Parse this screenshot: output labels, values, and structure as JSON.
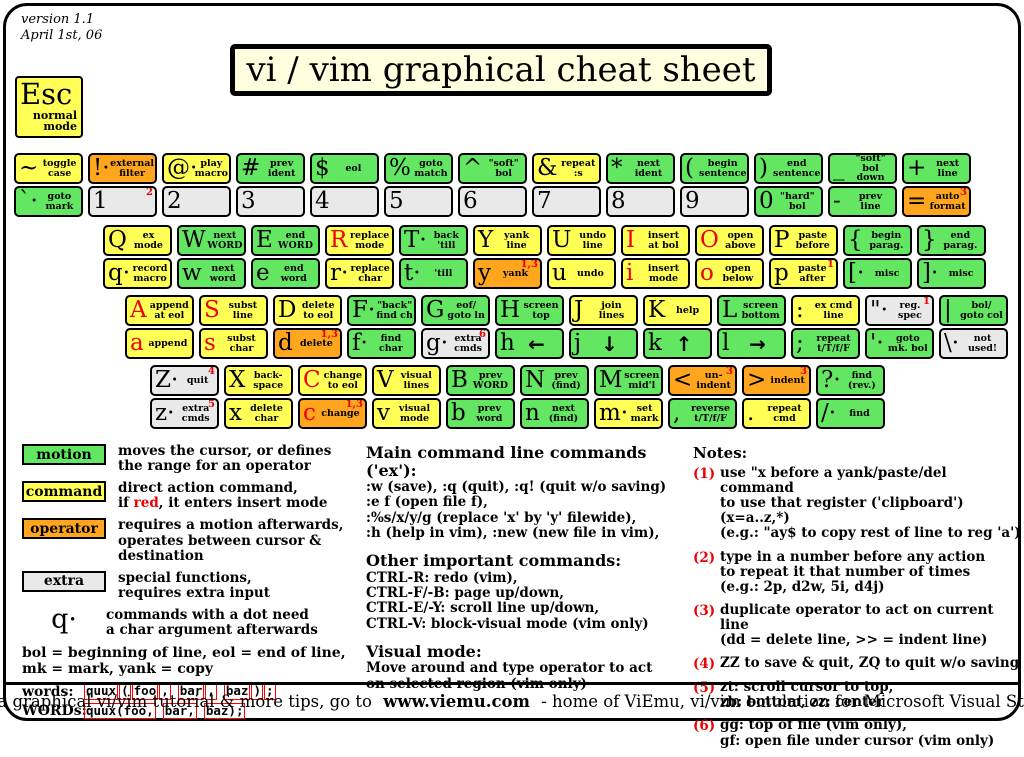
{
  "meta": {
    "version": "version 1.1\nApril 1st, 06"
  },
  "title": "vi / vim graphical cheat sheet",
  "esc": {
    "label": "Esc",
    "sublabel": "normal\nmode"
  },
  "colors": {
    "motion": "#63e763",
    "command": "#ffff55",
    "operator": "#ffa51e",
    "extra": "#e9e9e9",
    "red": "#ee0000",
    "cream": "#ffffdf"
  },
  "keyboard": {
    "rows": [
      [
        {
          "name": "key-tilde",
          "top": {
            "sym": "~",
            "label": "toggle\ncase",
            "color": "command"
          },
          "bottom": {
            "sym": "`·",
            "label": "goto\nmark",
            "color": "motion"
          }
        },
        {
          "name": "key-1",
          "top": {
            "sym": "!·",
            "label": "external\nfilter",
            "color": "operator"
          },
          "bottom": {
            "sym": "1",
            "label": "",
            "color": "extra",
            "sup": "2"
          }
        },
        {
          "name": "key-2",
          "top": {
            "sym": "@·",
            "label": "play\nmacro",
            "color": "command"
          },
          "bottom": {
            "sym": "2",
            "label": "",
            "color": "extra"
          }
        },
        {
          "name": "key-3",
          "top": {
            "sym": "#",
            "label": "prev\nident",
            "color": "motion"
          },
          "bottom": {
            "sym": "3",
            "label": "",
            "color": "extra"
          }
        },
        {
          "name": "key-4",
          "top": {
            "sym": "$",
            "label": "eol",
            "color": "motion"
          },
          "bottom": {
            "sym": "4",
            "label": "",
            "color": "extra"
          }
        },
        {
          "name": "key-5",
          "top": {
            "sym": "%",
            "label": "goto\nmatch",
            "color": "motion"
          },
          "bottom": {
            "sym": "5",
            "label": "",
            "color": "extra"
          }
        },
        {
          "name": "key-6",
          "top": {
            "sym": "^",
            "label": "\"soft\"\nbol",
            "color": "motion"
          },
          "bottom": {
            "sym": "6",
            "label": "",
            "color": "extra"
          }
        },
        {
          "name": "key-7",
          "top": {
            "sym": "&",
            "label": "repeat\n:s",
            "color": "command"
          },
          "bottom": {
            "sym": "7",
            "label": "",
            "color": "extra"
          }
        },
        {
          "name": "key-8",
          "top": {
            "sym": "*",
            "label": "next\nident",
            "color": "motion"
          },
          "bottom": {
            "sym": "8",
            "label": "",
            "color": "extra"
          }
        },
        {
          "name": "key-9",
          "top": {
            "sym": "(",
            "label": "begin\nsentence",
            "color": "motion"
          },
          "bottom": {
            "sym": "9",
            "label": "",
            "color": "extra"
          }
        },
        {
          "name": "key-0",
          "top": {
            "sym": ")",
            "label": "end\nsentence",
            "color": "motion"
          },
          "bottom": {
            "sym": "0",
            "label": "\"hard\"\nbol",
            "color": "motion"
          }
        },
        {
          "name": "key-minus",
          "top": {
            "sym": "_",
            "label": "\"soft\" bol\ndown",
            "color": "motion"
          },
          "bottom": {
            "sym": "-",
            "label": "prev\nline",
            "color": "motion"
          }
        },
        {
          "name": "key-equals",
          "top": {
            "sym": "+",
            "label": "next\nline",
            "color": "motion"
          },
          "bottom": {
            "sym": "=",
            "label": "auto\nformat",
            "color": "operator",
            "sup": "3"
          }
        }
      ],
      [
        {
          "name": "key-q",
          "top": {
            "sym": "Q",
            "label": "ex\nmode",
            "color": "command"
          },
          "bottom": {
            "sym": "q·",
            "label": "record\nmacro",
            "color": "command"
          }
        },
        {
          "name": "key-w",
          "top": {
            "sym": "W",
            "label": "next\nWORD",
            "color": "motion"
          },
          "bottom": {
            "sym": "w",
            "label": "next\nword",
            "color": "motion"
          }
        },
        {
          "name": "key-e",
          "top": {
            "sym": "E",
            "label": "end\nWORD",
            "color": "motion"
          },
          "bottom": {
            "sym": "e",
            "label": "end\nword",
            "color": "motion"
          }
        },
        {
          "name": "key-r",
          "top": {
            "sym": "R",
            "red": true,
            "label": "replace\nmode",
            "color": "command"
          },
          "bottom": {
            "sym": "r·",
            "label": "replace\nchar",
            "color": "command"
          }
        },
        {
          "name": "key-t",
          "top": {
            "sym": "T·",
            "label": "back\n'till",
            "color": "motion"
          },
          "bottom": {
            "sym": "t·",
            "label": "'till",
            "color": "motion"
          }
        },
        {
          "name": "key-y",
          "top": {
            "sym": "Y",
            "label": "yank\nline",
            "color": "command"
          },
          "bottom": {
            "sym": "y",
            "label": "yank",
            "color": "operator",
            "sup": "1,3"
          }
        },
        {
          "name": "key-u",
          "top": {
            "sym": "U",
            "label": "undo\nline",
            "color": "command"
          },
          "bottom": {
            "sym": "u",
            "label": "undo",
            "color": "command"
          }
        },
        {
          "name": "key-i",
          "top": {
            "sym": "I",
            "red": true,
            "label": "insert\nat bol",
            "color": "command"
          },
          "bottom": {
            "sym": "i",
            "red": true,
            "label": "insert\nmode",
            "color": "command"
          }
        },
        {
          "name": "key-o",
          "top": {
            "sym": "O",
            "red": true,
            "label": "open\nabove",
            "color": "command"
          },
          "bottom": {
            "sym": "o",
            "red": true,
            "label": "open\nbelow",
            "color": "command"
          }
        },
        {
          "name": "key-p",
          "top": {
            "sym": "P",
            "label": "paste\nbefore",
            "color": "command"
          },
          "bottom": {
            "sym": "p",
            "label": "paste\nafter",
            "color": "command",
            "sup": "1"
          }
        },
        {
          "name": "key-bracket-open",
          "top": {
            "sym": "{",
            "label": "begin\nparag.",
            "color": "motion"
          },
          "bottom": {
            "sym": "[·",
            "label": "misc",
            "color": "motion"
          }
        },
        {
          "name": "key-bracket-close",
          "top": {
            "sym": "}",
            "label": "end\nparag.",
            "color": "motion"
          },
          "bottom": {
            "sym": "]·",
            "label": "misc",
            "color": "motion"
          }
        }
      ],
      [
        {
          "name": "key-a",
          "top": {
            "sym": "A",
            "red": true,
            "label": "append\nat eol",
            "color": "command"
          },
          "bottom": {
            "sym": "a",
            "red": true,
            "label": "append",
            "color": "command"
          }
        },
        {
          "name": "key-s",
          "top": {
            "sym": "S",
            "red": true,
            "label": "subst\nline",
            "color": "command"
          },
          "bottom": {
            "sym": "s",
            "red": true,
            "label": "subst\nchar",
            "color": "command"
          }
        },
        {
          "name": "key-d",
          "top": {
            "sym": "D",
            "label": "delete\nto eol",
            "color": "command"
          },
          "bottom": {
            "sym": "d",
            "label": "delete",
            "color": "operator",
            "sup": "1,3"
          }
        },
        {
          "name": "key-f",
          "top": {
            "sym": "F·",
            "label": "\"back\"\nfind ch",
            "color": "motion"
          },
          "bottom": {
            "sym": "f·",
            "label": "find\nchar",
            "color": "motion"
          }
        },
        {
          "name": "key-g",
          "top": {
            "sym": "G",
            "label": "eof/\ngoto ln",
            "color": "motion"
          },
          "bottom": {
            "sym": "g·",
            "label": "extra\ncmds",
            "color": "extra",
            "sup": "6"
          }
        },
        {
          "name": "key-h",
          "top": {
            "sym": "H",
            "label": "screen\ntop",
            "color": "motion"
          },
          "bottom": {
            "sym": "h",
            "arrow": "←",
            "color": "motion"
          }
        },
        {
          "name": "key-j",
          "top": {
            "sym": "J",
            "label": "join\nlines",
            "color": "command"
          },
          "bottom": {
            "sym": "j",
            "arrow": "↓",
            "color": "motion"
          }
        },
        {
          "name": "key-k",
          "top": {
            "sym": "K",
            "label": "help",
            "color": "command"
          },
          "bottom": {
            "sym": "k",
            "arrow": "↑",
            "color": "motion"
          }
        },
        {
          "name": "key-l",
          "top": {
            "sym": "L",
            "label": "screen\nbottom",
            "color": "motion"
          },
          "bottom": {
            "sym": "l",
            "arrow": "→",
            "color": "motion"
          }
        },
        {
          "name": "key-colon",
          "top": {
            "sym": ":",
            "label": "ex cmd\nline",
            "color": "command"
          },
          "bottom": {
            "sym": ";",
            "label": "repeat\nt/T/f/F",
            "color": "motion"
          }
        },
        {
          "name": "key-quote",
          "top": {
            "sym": "\"·",
            "label": "reg.\nspec",
            "color": "extra",
            "sup": "1"
          },
          "bottom": {
            "sym": "'·",
            "label": "goto\nmk. bol",
            "color": "motion"
          }
        },
        {
          "name": "key-pipe",
          "top": {
            "sym": "|",
            "label": "bol/\ngoto col",
            "color": "motion"
          },
          "bottom": {
            "sym": "\\·",
            "label": "not\nused!",
            "color": "extra"
          }
        }
      ],
      [
        {
          "name": "key-z",
          "top": {
            "sym": "Z·",
            "label": "quit",
            "color": "extra",
            "sup": "4"
          },
          "bottom": {
            "sym": "z·",
            "label": "extra\ncmds",
            "color": "extra",
            "sup": "5"
          }
        },
        {
          "name": "key-x",
          "top": {
            "sym": "X",
            "label": "back-\nspace",
            "color": "command"
          },
          "bottom": {
            "sym": "x",
            "label": "delete\nchar",
            "color": "command"
          }
        },
        {
          "name": "key-c",
          "top": {
            "sym": "C",
            "red": true,
            "label": "change\nto eol",
            "color": "command"
          },
          "bottom": {
            "sym": "c",
            "red": true,
            "label": "change",
            "color": "operator",
            "sup": "1,3"
          }
        },
        {
          "name": "key-v",
          "top": {
            "sym": "V",
            "label": "visual\nlines",
            "color": "command"
          },
          "bottom": {
            "sym": "v",
            "label": "visual\nmode",
            "color": "command"
          }
        },
        {
          "name": "key-b",
          "top": {
            "sym": "B",
            "label": "prev\nWORD",
            "color": "motion"
          },
          "bottom": {
            "sym": "b",
            "label": "prev\nword",
            "color": "motion"
          }
        },
        {
          "name": "key-n",
          "top": {
            "sym": "N",
            "label": "prev\n(find)",
            "color": "motion"
          },
          "bottom": {
            "sym": "n",
            "label": "next\n(find)",
            "color": "motion"
          }
        },
        {
          "name": "key-m",
          "top": {
            "sym": "M",
            "label": "screen\nmid'l",
            "color": "motion"
          },
          "bottom": {
            "sym": "m·",
            "label": "set\nmark",
            "color": "command"
          }
        },
        {
          "name": "key-comma",
          "top": {
            "sym": "<",
            "label": "un-\nindent",
            "color": "operator",
            "sup": "3"
          },
          "bottom": {
            "sym": ",",
            "label": "reverse\nt/T/f/F",
            "color": "motion"
          }
        },
        {
          "name": "key-period",
          "top": {
            "sym": ">",
            "label": "indent",
            "color": "operator",
            "sup": "3"
          },
          "bottom": {
            "sym": ".",
            "label": "repeat\ncmd",
            "color": "command"
          }
        },
        {
          "name": "key-slash",
          "top": {
            "sym": "?·",
            "label": "find\n(rev.)",
            "color": "motion"
          },
          "bottom": {
            "sym": "/·",
            "label": "find",
            "color": "motion"
          }
        }
      ]
    ]
  },
  "legend": {
    "items": [
      {
        "label": "motion",
        "color": "motion",
        "desc": "moves the cursor, or defines\nthe range for an operator"
      },
      {
        "label": "command",
        "color": "command",
        "desc_pre": "direct action command,\nif ",
        "desc_red": "red",
        "desc_post": ", it enters insert mode"
      },
      {
        "label": "operator",
        "color": "operator",
        "desc": "requires a motion afterwards,\noperates between cursor &\ndestination"
      },
      {
        "label": "extra",
        "color": "extra",
        "desc": "special functions,\nrequires extra input"
      }
    ],
    "dot_sym": "q·",
    "dot_desc": "commands with a dot need\na char argument afterwards",
    "abbrev": "bol = beginning of line, eol = end of line,\nmk = mark, yank = copy",
    "word_rows": [
      {
        "label": "words:",
        "tokens": [
          "quux",
          "(",
          "foo",
          ",",
          " ",
          "bar",
          ",",
          " ",
          "baz",
          ")",
          ";"
        ]
      },
      {
        "label": "WORDs:",
        "tokens": [
          "quux(foo,",
          " ",
          "bar,",
          " ",
          "baz);"
        ]
      }
    ]
  },
  "center_sections": [
    {
      "heading": "Main command line commands ('ex'):",
      "lines": ":w (save), :q (quit), :q! (quit w/o saving)\n:e f (open file f),\n:%s/x/y/g (replace 'x' by 'y' filewide),\n:h (help in vim), :new (new file in vim),"
    },
    {
      "heading": "Other important commands:",
      "lines": "CTRL-R: redo (vim),\nCTRL-F/-B: page up/down,\nCTRL-E/-Y: scroll line up/down,\nCTRL-V: block-visual mode (vim only)"
    },
    {
      "heading": "Visual mode:",
      "lines": "Move around and type operator to act\non selected region (vim only)"
    }
  ],
  "notes": {
    "heading": "Notes:",
    "items": [
      {
        "num": "(1)",
        "text": "use \"x before a yank/paste/del command\nto use that register ('clipboard') (x=a..z,*)\n(e.g.: \"ay$ to copy rest of line to reg 'a')"
      },
      {
        "num": "(2)",
        "text": "type in a number before any action\nto repeat it that number of times\n(e.g.: 2p, d2w, 5i, d4j)"
      },
      {
        "num": "(3)",
        "text": "duplicate operator to act on current line\n(dd = delete line, >> = indent line)"
      },
      {
        "num": "(4)",
        "text": "ZZ to save & quit, ZQ to quit w/o saving"
      },
      {
        "num": "(5)",
        "text": "zt: scroll cursor to top,\nzb: bottom, zz: center"
      },
      {
        "num": "(6)",
        "text": "gg: top of file (vim only),\ngf: open file under cursor (vim only)"
      }
    ]
  },
  "footer": {
    "pre": "For a graphical vi/vim tutorial & more tips, go to ",
    "url": "www.viemu.com",
    "post": " - home of ViEmu, vi/vim emulation for Microsoft Visual Studio"
  }
}
